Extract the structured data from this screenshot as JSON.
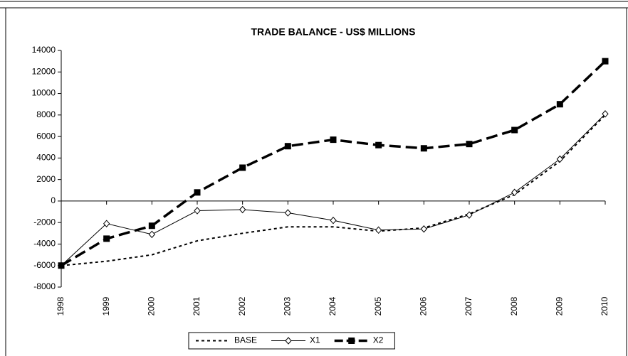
{
  "chart_data": {
    "type": "line",
    "title": "TRADE BALANCE - US$ MILLIONS",
    "categories": [
      "1998",
      "1999",
      "2000",
      "2001",
      "2002",
      "2003",
      "2004",
      "2005",
      "2006",
      "2007",
      "2008",
      "2009",
      "2010"
    ],
    "series": [
      {
        "name": "BASE",
        "color": "#000000",
        "style": "dotted",
        "marker": "none",
        "values": [
          -6000,
          -5600,
          -5000,
          -3700,
          -3000,
          -2400,
          -2400,
          -2800,
          -2500,
          -1200,
          600,
          3700,
          8000
        ]
      },
      {
        "name": "X1",
        "color": "#000000",
        "style": "solid",
        "marker": "diamond",
        "values": [
          -6000,
          -2100,
          -3100,
          -900,
          -800,
          -1100,
          -1800,
          -2700,
          -2600,
          -1300,
          800,
          3900,
          8100
        ]
      },
      {
        "name": "X2",
        "color": "#000000",
        "style": "dashed",
        "marker": "square",
        "values": [
          -6000,
          -3500,
          -2300,
          800,
          3100,
          5100,
          5700,
          5200,
          4900,
          5300,
          6600,
          9000,
          13000
        ]
      }
    ],
    "ylim": [
      -8000,
      14000
    ],
    "yticks": [
      -8000,
      -6000,
      -4000,
      -2000,
      0,
      2000,
      4000,
      6000,
      8000,
      10000,
      12000,
      14000
    ],
    "grid": false,
    "legend": "bottom"
  }
}
